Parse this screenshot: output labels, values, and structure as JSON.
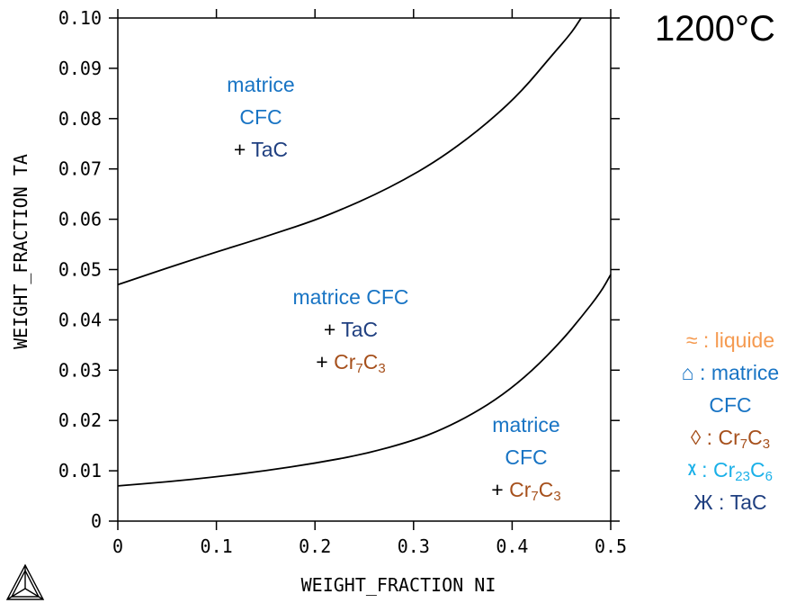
{
  "chart_data": {
    "type": "line",
    "temperature_label": "1200°C",
    "xlabel": "WEIGHT_FRACTION NI",
    "ylabel": "WEIGHT_FRACTION TA",
    "xlim": [
      0,
      0.5
    ],
    "ylim": [
      0,
      0.1
    ],
    "x_ticks": [
      "0",
      "0.1",
      "0.2",
      "0.3",
      "0.4",
      "0.5"
    ],
    "y_ticks": [
      "0",
      "0.01",
      "0.02",
      "0.03",
      "0.04",
      "0.05",
      "0.06",
      "0.07",
      "0.08",
      "0.09",
      "0.10"
    ],
    "series": [
      {
        "x": [
          0,
          0.02,
          0.05,
          0.08,
          0.1,
          0.13,
          0.16,
          0.2,
          0.23,
          0.26,
          0.29,
          0.32,
          0.35,
          0.38,
          0.41,
          0.44,
          0.46,
          0.47
        ],
        "y": [
          0.047,
          0.0483,
          0.0503,
          0.0522,
          0.0535,
          0.0553,
          0.0572,
          0.0598,
          0.0622,
          0.0648,
          0.0678,
          0.0712,
          0.0753,
          0.08,
          0.0855,
          0.0925,
          0.097,
          0.1
        ]
      },
      {
        "x": [
          0,
          0.05,
          0.1,
          0.15,
          0.2,
          0.25,
          0.3,
          0.33,
          0.36,
          0.39,
          0.42,
          0.45,
          0.47,
          0.49,
          0.5
        ],
        "y": [
          0.007,
          0.0078,
          0.0088,
          0.01,
          0.0115,
          0.0133,
          0.016,
          0.0183,
          0.0213,
          0.025,
          0.0298,
          0.0358,
          0.0405,
          0.0455,
          0.049
        ]
      }
    ],
    "regions": [
      {
        "name": "matrice CFC + TaC",
        "lines": [
          "matrice",
          "CFC",
          "+ TaC"
        ]
      },
      {
        "name": "matrice CFC + TaC + Cr7C3",
        "lines": [
          "matrice CFC",
          "+ TaC",
          "+ Cr7C3"
        ]
      },
      {
        "name": "matrice CFC + Cr7C3",
        "lines": [
          "matrice",
          "CFC",
          "+ Cr7C3"
        ]
      }
    ],
    "legend": [
      {
        "symbol": "≈",
        "label": "liquide"
      },
      {
        "symbol": "⌂",
        "label": "matrice CFC"
      },
      {
        "symbol": "◊",
        "label": "Cr7C3"
      },
      {
        "symbol": "ᵡ",
        "label": "Cr23C6"
      },
      {
        "symbol": "Ж",
        "label": "TaC"
      }
    ]
  },
  "text": {
    "temp": "1200°C",
    "r1_l1": "matrice",
    "r1_l2": "CFC",
    "r1_l3_plus": "+ ",
    "r1_l3_phase": "TaC",
    "r2_l1": "matrice CFC",
    "r2_l2_plus": "+ ",
    "r2_l2_phase": "TaC",
    "r2_l3_plus": "+ ",
    "r2_l3_cr": "Cr",
    "r2_l3_7": "7",
    "r2_l3_c": "C",
    "r2_l3_3": "3",
    "r3_l1": "matrice",
    "r3_l2": "CFC",
    "r3_l3_plus": "+ ",
    "r3_l3_cr": "Cr",
    "r3_l3_7": "7",
    "r3_l3_c": "C",
    "r3_l3_3": "3",
    "leg_liquid_sym": "≈",
    "leg_liquid": " : liquide",
    "leg_fcc_sym": "⌂",
    "leg_fcc_a": " : matrice",
    "leg_fcc_b": "CFC",
    "leg_cr7_sym": "◊",
    "leg_cr7_a": " : Cr",
    "leg_cr7_7": "7",
    "leg_cr7_c": "C",
    "leg_cr7_3": "3",
    "leg_cr23_sym": "ᵡ",
    "leg_cr23_a": " : Cr",
    "leg_cr23_23": "23",
    "leg_cr23_c": "C",
    "leg_cr23_6": "6",
    "leg_tac_sym": "Ж",
    "leg_tac": "  : TaC"
  },
  "colors": {
    "fcc_blue": "#1874c4",
    "tac_navy": "#1f3f80",
    "cr7c3_brown": "#a6501c",
    "liquid_orange": "#f59a50",
    "cr23c6_cyan": "#1ab0e8"
  }
}
